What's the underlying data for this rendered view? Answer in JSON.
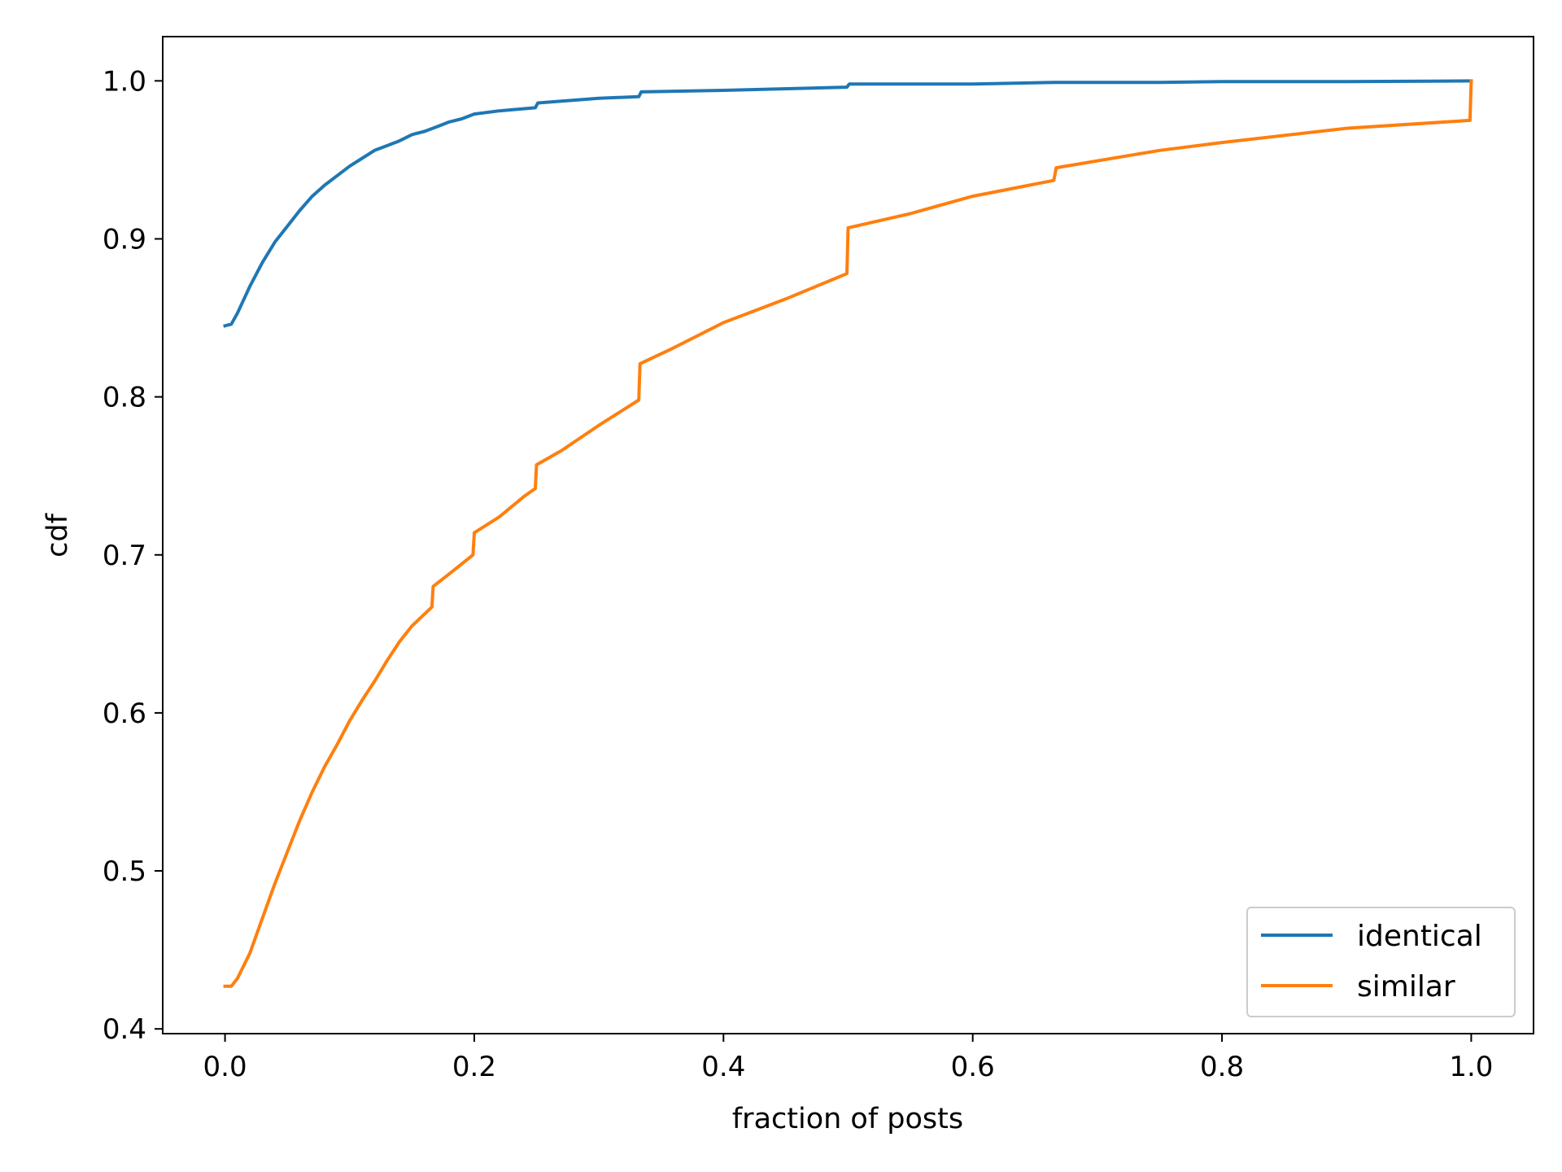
{
  "chart_data": {
    "type": "line",
    "title": "",
    "xlabel": "fraction of posts",
    "ylabel": "cdf",
    "xlim": [
      -0.05,
      1.05
    ],
    "ylim": [
      0.397,
      1.028
    ],
    "grid": false,
    "legend_position": "lower-right",
    "x_ticks": [
      {
        "value": 0.0,
        "label": "0.0"
      },
      {
        "value": 0.2,
        "label": "0.2"
      },
      {
        "value": 0.4,
        "label": "0.4"
      },
      {
        "value": 0.6,
        "label": "0.6"
      },
      {
        "value": 0.8,
        "label": "0.8"
      },
      {
        "value": 1.0,
        "label": "1.0"
      }
    ],
    "y_ticks": [
      {
        "value": 0.4,
        "label": "0.4"
      },
      {
        "value": 0.5,
        "label": "0.5"
      },
      {
        "value": 0.6,
        "label": "0.6"
      },
      {
        "value": 0.7,
        "label": "0.7"
      },
      {
        "value": 0.8,
        "label": "0.8"
      },
      {
        "value": 0.9,
        "label": "0.9"
      },
      {
        "value": 1.0,
        "label": "1.0"
      }
    ],
    "series": [
      {
        "name": "identical",
        "color": "#1f77b4",
        "points": [
          [
            0.0,
            0.845
          ],
          [
            0.005,
            0.846
          ],
          [
            0.01,
            0.853
          ],
          [
            0.02,
            0.87
          ],
          [
            0.03,
            0.885
          ],
          [
            0.04,
            0.898
          ],
          [
            0.05,
            0.908
          ],
          [
            0.06,
            0.918
          ],
          [
            0.07,
            0.927
          ],
          [
            0.08,
            0.934
          ],
          [
            0.09,
            0.94
          ],
          [
            0.1,
            0.946
          ],
          [
            0.11,
            0.951
          ],
          [
            0.12,
            0.956
          ],
          [
            0.13,
            0.959
          ],
          [
            0.14,
            0.962
          ],
          [
            0.15,
            0.966
          ],
          [
            0.16,
            0.968
          ],
          [
            0.17,
            0.971
          ],
          [
            0.18,
            0.974
          ],
          [
            0.19,
            0.976
          ],
          [
            0.2,
            0.979
          ],
          [
            0.22,
            0.981
          ],
          [
            0.249,
            0.983
          ],
          [
            0.251,
            0.986
          ],
          [
            0.3,
            0.989
          ],
          [
            0.332,
            0.99
          ],
          [
            0.334,
            0.993
          ],
          [
            0.4,
            0.994
          ],
          [
            0.499,
            0.996
          ],
          [
            0.501,
            0.998
          ],
          [
            0.6,
            0.998
          ],
          [
            0.665,
            0.999
          ],
          [
            0.667,
            0.999
          ],
          [
            0.75,
            0.999
          ],
          [
            0.8,
            0.9995
          ],
          [
            0.9,
            0.9995
          ],
          [
            1.0,
            1.0
          ]
        ]
      },
      {
        "name": "similar",
        "color": "#ff7f0e",
        "points": [
          [
            0.0,
            0.427
          ],
          [
            0.005,
            0.427
          ],
          [
            0.01,
            0.432
          ],
          [
            0.02,
            0.448
          ],
          [
            0.03,
            0.47
          ],
          [
            0.04,
            0.492
          ],
          [
            0.05,
            0.512
          ],
          [
            0.06,
            0.532
          ],
          [
            0.07,
            0.55
          ],
          [
            0.08,
            0.566
          ],
          [
            0.09,
            0.58
          ],
          [
            0.1,
            0.595
          ],
          [
            0.11,
            0.608
          ],
          [
            0.12,
            0.62
          ],
          [
            0.13,
            0.633
          ],
          [
            0.14,
            0.645
          ],
          [
            0.15,
            0.655
          ],
          [
            0.166,
            0.667
          ],
          [
            0.167,
            0.68
          ],
          [
            0.18,
            0.688
          ],
          [
            0.199,
            0.7
          ],
          [
            0.2,
            0.714
          ],
          [
            0.22,
            0.724
          ],
          [
            0.24,
            0.737
          ],
          [
            0.249,
            0.742
          ],
          [
            0.25,
            0.757
          ],
          [
            0.27,
            0.766
          ],
          [
            0.3,
            0.782
          ],
          [
            0.332,
            0.798
          ],
          [
            0.333,
            0.821
          ],
          [
            0.36,
            0.831
          ],
          [
            0.4,
            0.847
          ],
          [
            0.45,
            0.862
          ],
          [
            0.499,
            0.878
          ],
          [
            0.5,
            0.907
          ],
          [
            0.55,
            0.916
          ],
          [
            0.6,
            0.927
          ],
          [
            0.665,
            0.937
          ],
          [
            0.667,
            0.945
          ],
          [
            0.75,
            0.956
          ],
          [
            0.8,
            0.961
          ],
          [
            0.9,
            0.97
          ],
          [
            0.999,
            0.975
          ],
          [
            1.0,
            1.0
          ]
        ]
      }
    ]
  }
}
